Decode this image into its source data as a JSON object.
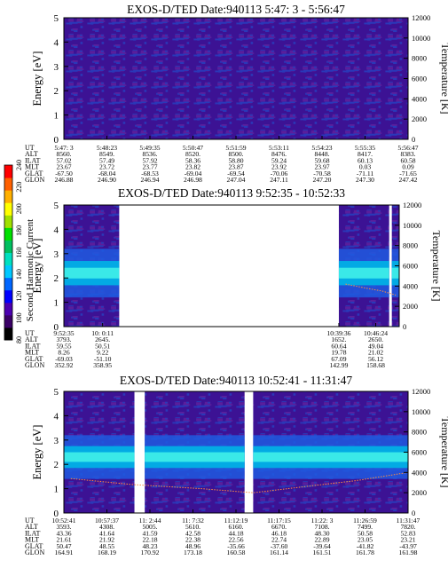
{
  "chart_data": [
    {
      "type": "heatmap",
      "title": "EXOS-D/TED   Date:940113   5:47: 3 - 5:56:47",
      "ylabel": "Energy [eV]",
      "ylabel_right": "Temperature [K]",
      "ylim": [
        0,
        5
      ],
      "ylim_right": [
        0,
        12000
      ],
      "yticks": [
        "0",
        "1",
        "2",
        "3",
        "4",
        "5"
      ],
      "yticks_right": [
        "0",
        "2000",
        "4000",
        "6000",
        "8000",
        "10000",
        "12000"
      ],
      "coverage": [
        [
          0,
          1
        ]
      ],
      "band": null,
      "table": {
        "row_labels": [
          "UT",
          "ALT",
          "ILAT",
          "MLT",
          "GLAT",
          "GLON"
        ],
        "columns": [
          [
            "5:47: 3",
            "8560.",
            "57.02",
            "23.67",
            "-67.50",
            "246.88"
          ],
          [
            "5:48:23",
            "8549.",
            "57.49",
            "23.72",
            "-68.04",
            "246.90"
          ],
          [
            "5:49:35",
            "8536.",
            "57.92",
            "23.77",
            "-68.53",
            "246.94"
          ],
          [
            "5:50:47",
            "8520.",
            "58.36",
            "23.82",
            "-69.04",
            "246.98"
          ],
          [
            "5:51:59",
            "8500.",
            "58.80",
            "23.87",
            "-69.54",
            "247.04"
          ],
          [
            "5:53:11",
            "8476.",
            "59.24",
            "23.92",
            "-70.06",
            "247.11"
          ],
          [
            "5:54:23",
            "8448.",
            "59.68",
            "23.97",
            "-70.58",
            "247.20"
          ],
          [
            "5:55:35",
            "8417.",
            "60.13",
            "0.03",
            "-71.11",
            "247.30"
          ],
          [
            "5:56:47",
            "8383.",
            "60.58",
            "0.09",
            "-71.65",
            "247.42"
          ]
        ]
      }
    },
    {
      "type": "heatmap",
      "title": "EXOS-D/TED   Date:940113   9:52:35 - 10:52:33",
      "ylabel": "Energy [eV]",
      "ylabel_right": "Temperature [K]",
      "ylim": [
        0,
        5
      ],
      "ylim_right": [
        0,
        12000
      ],
      "yticks": [
        "0",
        "1",
        "2",
        "3",
        "4",
        "5"
      ],
      "yticks_right": [
        "0",
        "2000",
        "4000",
        "6000",
        "8000",
        "10000",
        "12000"
      ],
      "coverage": [
        [
          0,
          0.165
        ],
        [
          0.82,
          0.97
        ],
        [
          0.978,
          1
        ]
      ],
      "band": {
        "energy_center": 2.2,
        "energy_width": 1.0
      },
      "temperature_trace": [
        [
          0.84,
          4200
        ],
        [
          0.9,
          3800
        ],
        [
          0.95,
          3500
        ],
        [
          0.99,
          3100
        ]
      ],
      "table": {
        "row_labels": [
          "UT",
          "ALT",
          "ILAT",
          "MLT",
          "GLAT",
          "GLON"
        ],
        "columns": [
          [
            "9:52:35",
            "3793.",
            "59.55",
            "8.26",
            "-69.03",
            "352.92"
          ],
          [
            "10: 0:11",
            "2645.",
            "50.51",
            "9.22",
            "-51.10",
            "358.95"
          ],
          [
            "10:39:36",
            "1652.",
            "60.64",
            "19.78",
            "67.09",
            "142.99"
          ],
          [
            "10:46:24",
            "2650.",
            "49.04",
            "21.02",
            "56.12",
            "158.68"
          ]
        ]
      }
    },
    {
      "type": "heatmap",
      "title": "EXOS-D/TED   Date:940113   10:52:41 - 11:31:47",
      "ylabel": "Energy [eV]",
      "ylabel_right": "Temperature [K]",
      "ylim": [
        0,
        5
      ],
      "ylim_right": [
        0,
        12000
      ],
      "yticks": [
        "0",
        "1",
        "2",
        "3",
        "4",
        "5"
      ],
      "yticks_right": [
        "0",
        "2000",
        "4000",
        "6000",
        "8000",
        "10000",
        "12000"
      ],
      "coverage": [
        [
          0,
          0.205
        ],
        [
          0.235,
          0.525
        ],
        [
          0.55,
          1
        ]
      ],
      "band": {
        "energy_center": 2.3,
        "energy_width": 0.9
      },
      "temperature_trace": [
        [
          0.02,
          3400
        ],
        [
          0.2,
          2800
        ],
        [
          0.4,
          2400
        ],
        [
          0.55,
          2000
        ],
        [
          0.7,
          2600
        ],
        [
          0.85,
          3200
        ],
        [
          1.0,
          4000
        ]
      ],
      "table": {
        "row_labels": [
          "UT",
          "ALT",
          "ILAT",
          "MLT",
          "GLAT",
          "GLON"
        ],
        "columns": [
          [
            "10:52:41",
            "3593.",
            "43.36",
            "21.61",
            "50.47",
            "164.91"
          ],
          [
            "10:57:37",
            "4308.",
            "41.64",
            "21.92",
            "48.55",
            "168.19"
          ],
          [
            "11: 2:44",
            "5005.",
            "41.59",
            "22.18",
            "48.23",
            "170.92"
          ],
          [
            "11: 7:32",
            "5610.",
            "42.58",
            "22.38",
            "48.96",
            "173.18"
          ],
          [
            "11:12:19",
            "6160.",
            "44.18",
            "22.56",
            "-35.66",
            "160.58"
          ],
          [
            "11:17:15",
            "6670.",
            "46.18",
            "22.74",
            "-37.60",
            "161.14"
          ],
          [
            "11:22: 3",
            "7108.",
            "48.30",
            "22.89",
            "-39.64",
            "161.51"
          ],
          [
            "11:26:59",
            "7499.",
            "50.58",
            "23.05",
            "-41.82",
            "161.78"
          ],
          [
            "11:31:47",
            "7820.",
            "52.83",
            "23.21",
            "-43.97",
            "161.98"
          ]
        ]
      }
    }
  ],
  "colorbar": {
    "label": "Second Harmonic Current",
    "ticks": [
      "80",
      "100",
      "120",
      "140",
      "160",
      "180",
      "200",
      "220",
      "240"
    ],
    "colors": [
      "#000000",
      "#3a0066",
      "#4b00b0",
      "#0000ff",
      "#0066ff",
      "#00c8ff",
      "#00e0c0",
      "#00c060",
      "#00e000",
      "#a0e000",
      "#ffff00",
      "#ffb000",
      "#ff6000",
      "#ff0000"
    ]
  }
}
